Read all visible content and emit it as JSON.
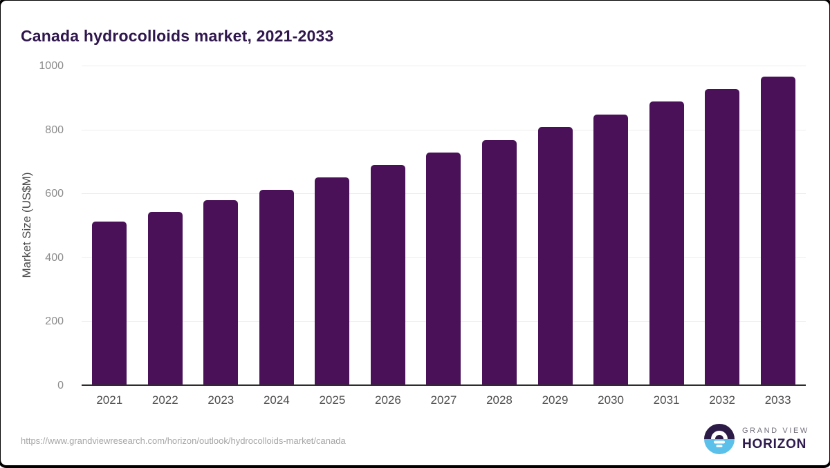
{
  "title": "Canada hydrocolloids market, 2021-2033",
  "source_url": "https://www.grandviewresearch.com/horizon/outlook/hydrocolloids-market/canada",
  "logo": {
    "line1": "GRAND VIEW",
    "line2": "HORIZON",
    "icon": "sun-over-horizon-circle"
  },
  "colors": {
    "bar": "#4a1159",
    "title": "#2f164d",
    "grid": "#ececec",
    "axis": "#2d2d2d",
    "ytick": "#8c8c8c",
    "xtick": "#4d4d4d",
    "url": "#a6a6a6",
    "logo_top_half": "#2c1a47",
    "logo_bottom_half": "#5bc0ea",
    "logo_text": "#2e1a4e",
    "logo_subtext": "#716d79"
  },
  "chart_data": {
    "type": "bar",
    "title": "Canada hydrocolloids market, 2021-2033",
    "categories": [
      "2021",
      "2022",
      "2023",
      "2024",
      "2025",
      "2026",
      "2027",
      "2028",
      "2029",
      "2030",
      "2031",
      "2032",
      "2033"
    ],
    "values": [
      514,
      545,
      580,
      614,
      652,
      691,
      730,
      770,
      810,
      849,
      889,
      928,
      967
    ],
    "xlabel": "",
    "ylabel": "Market Size (US$M)",
    "ylim": [
      0,
      1000
    ],
    "yticks": [
      0,
      200,
      400,
      600,
      800,
      1000
    ],
    "grid": true,
    "legend": false,
    "bar_color": "#4a1159"
  }
}
